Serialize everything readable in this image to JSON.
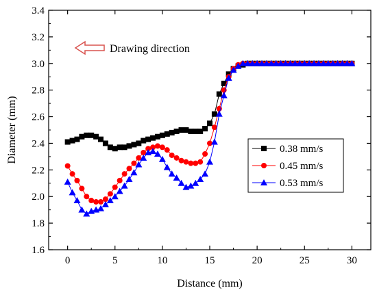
{
  "chart_data": {
    "type": "scatter",
    "title": "",
    "xlabel": "Distance (mm)",
    "ylabel": "Diameter (mm)",
    "xlim": [
      -2,
      32
    ],
    "ylim": [
      1.6,
      3.4
    ],
    "xticks": [
      0,
      5,
      10,
      15,
      20,
      25,
      30
    ],
    "yticks": [
      1.6,
      1.8,
      2.0,
      2.2,
      2.4,
      2.6,
      2.8,
      3.0,
      3.2,
      3.4
    ],
    "xtick_labels": [
      "0",
      "5",
      "10",
      "15",
      "20",
      "25",
      "30"
    ],
    "ytick_labels": [
      "1.6",
      "1.8",
      "2.0",
      "2.2",
      "2.4",
      "2.6",
      "2.8",
      "3.0",
      "3.2",
      "3.4"
    ],
    "grid": false,
    "legend_position": "right-middle",
    "annotation": {
      "text": "Drawing direction",
      "arrow": "left",
      "arrow_color": "#d9534f"
    },
    "series": [
      {
        "name": "0.38 mm/s",
        "marker": "square",
        "color": "#000000",
        "x": [
          0,
          0.5,
          1,
          1.5,
          2,
          2.5,
          3,
          3.5,
          4,
          4.5,
          5,
          5.5,
          6,
          6.5,
          7,
          7.5,
          8,
          8.5,
          9,
          9.5,
          10,
          10.5,
          11,
          11.5,
          12,
          12.5,
          13,
          13.5,
          14,
          14.5,
          15,
          15.5,
          16,
          16.5,
          17,
          17.5,
          18,
          18.5,
          19,
          19.5,
          20,
          20.5,
          21,
          21.5,
          22,
          22.5,
          23,
          23.5,
          24,
          24.5,
          25,
          25.5,
          26,
          26.5,
          27,
          27.5,
          28,
          28.5,
          29,
          29.5,
          30
        ],
        "y": [
          2.41,
          2.42,
          2.43,
          2.45,
          2.46,
          2.46,
          2.45,
          2.43,
          2.4,
          2.37,
          2.36,
          2.37,
          2.37,
          2.38,
          2.39,
          2.4,
          2.42,
          2.43,
          2.44,
          2.45,
          2.46,
          2.47,
          2.48,
          2.49,
          2.5,
          2.5,
          2.49,
          2.49,
          2.49,
          2.51,
          2.55,
          2.62,
          2.77,
          2.85,
          2.92,
          2.96,
          2.98,
          2.99,
          3.0,
          3.0,
          3.0,
          3.0,
          3.0,
          3.0,
          3.0,
          3.0,
          3.0,
          3.0,
          3.0,
          3.0,
          3.0,
          3.0,
          3.0,
          3.0,
          3.0,
          3.0,
          3.0,
          3.0,
          3.0,
          3.0,
          3.0
        ]
      },
      {
        "name": "0.45 mm/s",
        "marker": "circle",
        "color": "#ff0000",
        "x": [
          0,
          0.5,
          1,
          1.5,
          2,
          2.5,
          3,
          3.5,
          4,
          4.5,
          5,
          5.5,
          6,
          6.5,
          7,
          7.5,
          8,
          8.5,
          9,
          9.5,
          10,
          10.5,
          11,
          11.5,
          12,
          12.5,
          13,
          13.5,
          14,
          14.5,
          15,
          15.5,
          16,
          16.5,
          17,
          17.5,
          18,
          18.5,
          19,
          19.5,
          20,
          20.5,
          21,
          21.5,
          22,
          22.5,
          23,
          23.5,
          24,
          24.5,
          25,
          25.5,
          26,
          26.5,
          27,
          27.5,
          28,
          28.5,
          29,
          29.5,
          30
        ],
        "y": [
          2.23,
          2.17,
          2.12,
          2.06,
          2.0,
          1.97,
          1.96,
          1.96,
          1.98,
          2.02,
          2.07,
          2.12,
          2.17,
          2.21,
          2.25,
          2.29,
          2.33,
          2.36,
          2.37,
          2.38,
          2.37,
          2.35,
          2.31,
          2.29,
          2.27,
          2.26,
          2.25,
          2.25,
          2.26,
          2.32,
          2.4,
          2.52,
          2.66,
          2.8,
          2.9,
          2.96,
          2.99,
          3.0,
          3.0,
          3.0,
          3.0,
          3.0,
          3.0,
          3.0,
          3.0,
          3.0,
          3.0,
          3.0,
          3.0,
          3.0,
          3.0,
          3.0,
          3.0,
          3.0,
          3.0,
          3.0,
          3.0,
          3.0,
          3.0,
          3.0,
          3.0
        ]
      },
      {
        "name": "0.53 mm/s",
        "marker": "triangle",
        "color": "#0000ff",
        "x": [
          0,
          0.5,
          1,
          1.5,
          2,
          2.5,
          3,
          3.5,
          4,
          4.5,
          5,
          5.5,
          6,
          6.5,
          7,
          7.5,
          8,
          8.5,
          9,
          9.5,
          10,
          10.5,
          11,
          11.5,
          12,
          12.5,
          13,
          13.5,
          14,
          14.5,
          15,
          15.5,
          16,
          16.5,
          17,
          17.5,
          18,
          18.5,
          19,
          19.5,
          20,
          20.5,
          21,
          21.5,
          22,
          22.5,
          23,
          23.5,
          24,
          24.5,
          25,
          25.5,
          26,
          26.5,
          27,
          27.5,
          28,
          28.5,
          29,
          29.5,
          30
        ],
        "y": [
          2.11,
          2.03,
          1.97,
          1.9,
          1.87,
          1.89,
          1.9,
          1.91,
          1.94,
          1.97,
          2.0,
          2.04,
          2.08,
          2.13,
          2.18,
          2.24,
          2.29,
          2.33,
          2.34,
          2.32,
          2.28,
          2.22,
          2.17,
          2.14,
          2.1,
          2.07,
          2.08,
          2.1,
          2.13,
          2.17,
          2.26,
          2.41,
          2.62,
          2.76,
          2.89,
          2.95,
          2.98,
          3.0,
          3.0,
          3.0,
          3.0,
          3.0,
          3.0,
          3.0,
          3.0,
          3.0,
          3.0,
          3.0,
          3.0,
          3.0,
          3.0,
          3.0,
          3.0,
          3.0,
          3.0,
          3.0,
          3.0,
          3.0,
          3.0,
          3.0,
          3.0
        ]
      }
    ]
  }
}
